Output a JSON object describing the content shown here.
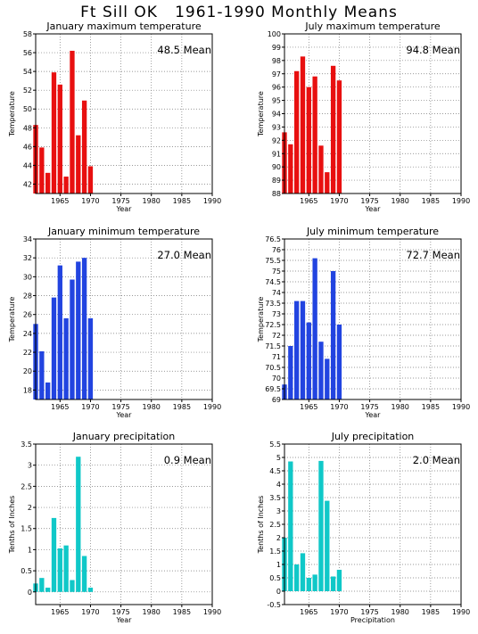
{
  "page_title": "Ft Sill OK   1961-1990 Monthly Means",
  "colors": {
    "red": "#e81010",
    "blue": "#2244e0",
    "cyan": "#10c8c8"
  },
  "chart_data": [
    {
      "id": "jan-max",
      "type": "bar",
      "title": "January maximum temperature",
      "mean_label": "48.5 Mean",
      "ylabel": "Temperature",
      "xlabel": "Year",
      "ylim": [
        41,
        58
      ],
      "yticks": [
        42,
        44,
        46,
        48,
        50,
        52,
        54,
        56,
        58
      ],
      "ytick_labels": [
        "42",
        "44",
        "46",
        "48",
        "50",
        "52",
        "54",
        "56",
        "58"
      ],
      "xlim": [
        1961,
        1990
      ],
      "xticks": [
        1965,
        1970,
        1975,
        1980,
        1985,
        1990
      ],
      "xtick_labels": [
        "1965",
        "1970",
        "1975",
        "1980",
        "1985",
        "1990"
      ],
      "color": "red",
      "grid": true,
      "x": [
        1961,
        1962,
        1963,
        1964,
        1965,
        1966,
        1967,
        1968,
        1969,
        1970
      ],
      "values": [
        48.3,
        45.9,
        43.2,
        53.9,
        52.6,
        42.8,
        56.2,
        47.2,
        50.9,
        43.9
      ]
    },
    {
      "id": "jul-max",
      "type": "bar",
      "title": "July maximum temperature",
      "mean_label": "94.8 Mean",
      "ylabel": "Temperature",
      "xlabel": "Year",
      "ylim": [
        88,
        100
      ],
      "yticks": [
        88,
        89,
        90,
        91,
        92,
        93,
        94,
        95,
        96,
        97,
        98,
        99,
        100
      ],
      "ytick_labels": [
        "88",
        "89",
        "90",
        "91",
        "92",
        "93",
        "94",
        "95",
        "96",
        "97",
        "98",
        "99",
        "100"
      ],
      "xlim": [
        1961,
        1990
      ],
      "xticks": [
        1965,
        1970,
        1975,
        1980,
        1985,
        1990
      ],
      "xtick_labels": [
        "1965",
        "1970",
        "1975",
        "1980",
        "1985",
        "1990"
      ],
      "color": "red",
      "grid": true,
      "x": [
        1961,
        1962,
        1963,
        1964,
        1965,
        1966,
        1967,
        1968,
        1969,
        1970
      ],
      "values": [
        92.6,
        91.7,
        97.2,
        98.3,
        96.0,
        96.8,
        91.6,
        89.6,
        97.6,
        96.5
      ]
    },
    {
      "id": "jan-min",
      "type": "bar",
      "title": "January minimum temperature",
      "mean_label": "27.0 Mean",
      "ylabel": "Temperature",
      "xlabel": "Year",
      "ylim": [
        17,
        34
      ],
      "yticks": [
        18,
        20,
        22,
        24,
        26,
        28,
        30,
        32,
        34
      ],
      "ytick_labels": [
        "18",
        "20",
        "22",
        "24",
        "26",
        "28",
        "30",
        "32",
        "34"
      ],
      "xlim": [
        1961,
        1990
      ],
      "xticks": [
        1965,
        1970,
        1975,
        1980,
        1985,
        1990
      ],
      "xtick_labels": [
        "1965",
        "1970",
        "1975",
        "1980",
        "1985",
        "1990"
      ],
      "color": "blue",
      "grid": true,
      "x": [
        1961,
        1962,
        1963,
        1964,
        1965,
        1966,
        1967,
        1968,
        1969,
        1970
      ],
      "values": [
        25.0,
        22.1,
        18.8,
        27.8,
        31.2,
        25.6,
        29.7,
        31.6,
        32.0,
        25.6
      ]
    },
    {
      "id": "jul-min",
      "type": "bar",
      "title": "July minimum temperature",
      "mean_label": "72.7 Mean",
      "ylabel": "Temperature",
      "xlabel": "Year",
      "ylim": [
        69,
        76.5
      ],
      "yticks": [
        69,
        69.5,
        70,
        70.5,
        71,
        71.5,
        72,
        72.5,
        73,
        73.5,
        74,
        74.5,
        75,
        75.5,
        76,
        76.5
      ],
      "ytick_labels": [
        "69",
        "69.5",
        "70",
        "70.5",
        "71",
        "71.5",
        "72",
        "72.5",
        "73",
        "73.5",
        "74",
        "74.5",
        "75",
        "75.5",
        "76",
        "76.5"
      ],
      "xlim": [
        1961,
        1990
      ],
      "xticks": [
        1965,
        1970,
        1975,
        1980,
        1985,
        1990
      ],
      "xtick_labels": [
        "1965",
        "1970",
        "1975",
        "1980",
        "1985",
        "1990"
      ],
      "color": "blue",
      "grid": true,
      "x": [
        1961,
        1962,
        1963,
        1964,
        1965,
        1966,
        1967,
        1968,
        1969,
        1970
      ],
      "values": [
        69.7,
        71.5,
        73.6,
        73.6,
        72.6,
        75.6,
        71.7,
        70.9,
        75.0,
        72.5
      ]
    },
    {
      "id": "jan-precip",
      "type": "bar",
      "title": "January precipitation",
      "mean_label": "0.9 Mean",
      "ylabel": "Tenths of Inches",
      "xlabel": "Year",
      "ylim": [
        -0.3,
        3.5
      ],
      "yticks": [
        0,
        0.5,
        1,
        1.5,
        2,
        2.5,
        3,
        3.5
      ],
      "ytick_labels": [
        "0",
        "0.5",
        "1",
        "1.5",
        "2",
        "2.5",
        "3",
        "3.5"
      ],
      "xlim": [
        1961,
        1990
      ],
      "xticks": [
        1965,
        1970,
        1975,
        1980,
        1985,
        1990
      ],
      "xtick_labels": [
        "1965",
        "1970",
        "1975",
        "1980",
        "1985",
        "1990"
      ],
      "color": "cyan",
      "grid": true,
      "x": [
        1961,
        1962,
        1963,
        1964,
        1965,
        1966,
        1967,
        1968,
        1969,
        1970
      ],
      "values": [
        0.2,
        0.33,
        0.1,
        1.75,
        1.03,
        1.1,
        0.28,
        3.2,
        0.85,
        0.1
      ]
    },
    {
      "id": "jul-precip",
      "type": "bar",
      "title": "July precipitation",
      "mean_label": "2.0 Mean",
      "ylabel": "Tenths of Inches",
      "xlabel": "Precipitation",
      "ylim": [
        -0.5,
        5.5
      ],
      "yticks": [
        -0.5,
        0,
        0.5,
        1,
        1.5,
        2,
        2.5,
        3,
        3.5,
        4,
        4.5,
        5,
        5.5
      ],
      "ytick_labels": [
        "-0.5",
        "0",
        "0.5",
        "1",
        "1.5",
        "2",
        "2.5",
        "3",
        "3.5",
        "4",
        "4.5",
        "5",
        "5.5"
      ],
      "xlim": [
        1961,
        1990
      ],
      "xticks": [
        1965,
        1970,
        1975,
        1980,
        1985,
        1990
      ],
      "xtick_labels": [
        "1965",
        "1970",
        "1975",
        "1980",
        "1985",
        "1990"
      ],
      "color": "cyan",
      "grid": true,
      "x": [
        1961,
        1962,
        1963,
        1964,
        1965,
        1966,
        1967,
        1968,
        1969,
        1970
      ],
      "values": [
        2.0,
        4.85,
        1.0,
        1.42,
        0.5,
        0.62,
        4.87,
        3.38,
        0.55,
        0.8
      ]
    }
  ]
}
